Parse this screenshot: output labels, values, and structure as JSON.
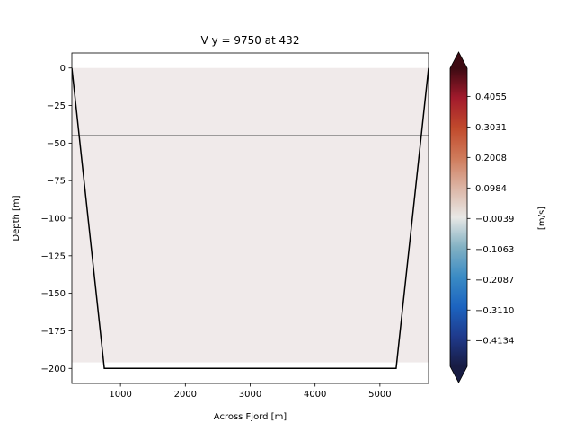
{
  "chart_data": {
    "type": "heatmap",
    "title": "V y = 9750 at 432",
    "xlabel": "Across Fjord [m]",
    "ylabel": "Depth [m]",
    "xlim": [
      250,
      5750
    ],
    "ylim": [
      -210,
      10
    ],
    "x_ticks": [
      1000,
      2000,
      3000,
      4000,
      5000
    ],
    "x_tick_labels": [
      "1000",
      "2000",
      "3000",
      "4000",
      "5000"
    ],
    "y_ticks": [
      0,
      -25,
      -50,
      -75,
      -100,
      -125,
      -150,
      -175,
      -200
    ],
    "y_tick_labels": [
      "0",
      "−25",
      "−50",
      "−75",
      "−100",
      "−125",
      "−150",
      "−175",
      "−200"
    ],
    "field": {
      "x_range": [
        250,
        5750
      ],
      "depth_range": [
        0,
        -196
      ],
      "value": -0.002,
      "color": "#f0eaea"
    },
    "bathymetry": {
      "x": [
        250,
        750,
        5250,
        5750
      ],
      "depth": [
        0,
        -200,
        -200,
        0
      ],
      "color": "#000000"
    },
    "reference_line": {
      "depth": -45,
      "color": "#808080"
    },
    "colorbar": {
      "label": "[m/s]",
      "vmin": -0.5,
      "vmax": 0.5,
      "ticks": [
        -0.4134,
        -0.311,
        -0.2087,
        -0.1063,
        -0.0039,
        0.0984,
        0.2008,
        0.3031,
        0.4055
      ],
      "tick_labels": [
        "−0.4134",
        "−0.3110",
        "−0.2087",
        "−0.1063",
        "−0.0039",
        "0.0984",
        "0.2008",
        "0.3031",
        "0.4055"
      ],
      "extend": "both",
      "colormap": "balance",
      "stops": [
        "#181c43",
        "#1f3a8c",
        "#1c64c0",
        "#3a8bc4",
        "#82b1c3",
        "#e8e8e6",
        "#dcb4a4",
        "#cf7a5a",
        "#c14a2c",
        "#a21a2c",
        "#3d0a12"
      ]
    }
  }
}
